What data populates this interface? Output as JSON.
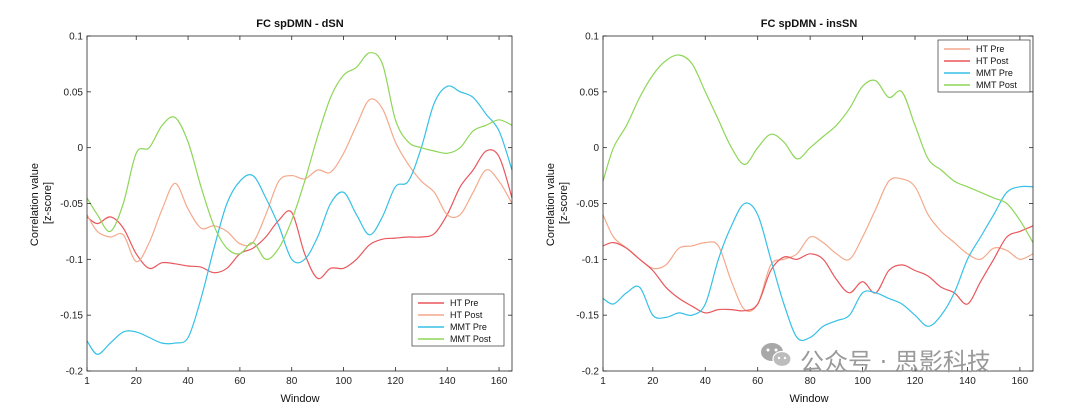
{
  "chart_data": [
    {
      "type": "line",
      "title": "FC spDMN - dSN",
      "xlabel": "Window",
      "ylabel_lines": [
        "Correlation value",
        "[z-score]"
      ],
      "xlim": [
        1,
        165
      ],
      "ylim": [
        -0.2,
        0.1
      ],
      "xticks": [
        1,
        20,
        40,
        60,
        80,
        100,
        120,
        140,
        160
      ],
      "yticks": [
        0.1,
        0.05,
        0,
        -0.05,
        -0.1,
        -0.15,
        -0.2
      ],
      "ytick_labels": [
        "0.1",
        "0.05",
        "0",
        "-0.05",
        "-0.1",
        "-0.15",
        "-0.2"
      ],
      "legend_position": "lower-right",
      "series": [
        {
          "name": "HT Pre",
          "color": "#e8575c",
          "x": [
            1,
            5,
            10,
            15,
            20,
            25,
            30,
            35,
            40,
            45,
            50,
            55,
            60,
            65,
            70,
            75,
            80,
            85,
            90,
            95,
            100,
            105,
            110,
            115,
            120,
            125,
            130,
            135,
            140,
            145,
            150,
            155,
            160,
            165
          ],
          "y": [
            -0.062,
            -0.068,
            -0.062,
            -0.072,
            -0.095,
            -0.108,
            -0.103,
            -0.104,
            -0.106,
            -0.107,
            -0.112,
            -0.108,
            -0.095,
            -0.09,
            -0.08,
            -0.065,
            -0.058,
            -0.095,
            -0.117,
            -0.108,
            -0.108,
            -0.1,
            -0.087,
            -0.082,
            -0.081,
            -0.08,
            -0.08,
            -0.077,
            -0.06,
            -0.035,
            -0.02,
            -0.003,
            -0.008,
            -0.045
          ]
        },
        {
          "name": "HT Post",
          "color": "#f4a98c",
          "x": [
            1,
            5,
            10,
            15,
            20,
            25,
            30,
            35,
            40,
            45,
            50,
            55,
            60,
            65,
            70,
            75,
            80,
            85,
            90,
            95,
            100,
            105,
            110,
            115,
            120,
            125,
            130,
            135,
            140,
            145,
            150,
            155,
            160,
            165
          ],
          "y": [
            -0.06,
            -0.075,
            -0.08,
            -0.078,
            -0.102,
            -0.085,
            -0.055,
            -0.032,
            -0.055,
            -0.072,
            -0.07,
            -0.075,
            -0.086,
            -0.085,
            -0.06,
            -0.03,
            -0.025,
            -0.028,
            -0.02,
            -0.022,
            -0.005,
            0.02,
            0.043,
            0.035,
            0.005,
            -0.015,
            -0.03,
            -0.04,
            -0.06,
            -0.06,
            -0.04,
            -0.02,
            -0.03,
            -0.05
          ]
        },
        {
          "name": "MMT Pre",
          "color": "#36c0e6",
          "x": [
            1,
            5,
            10,
            15,
            20,
            25,
            30,
            35,
            40,
            45,
            50,
            55,
            60,
            65,
            70,
            75,
            80,
            85,
            90,
            95,
            100,
            105,
            110,
            115,
            120,
            125,
            130,
            135,
            140,
            145,
            150,
            155,
            160,
            165
          ],
          "y": [
            -0.173,
            -0.185,
            -0.175,
            -0.165,
            -0.165,
            -0.17,
            -0.175,
            -0.175,
            -0.17,
            -0.135,
            -0.09,
            -0.05,
            -0.03,
            -0.025,
            -0.045,
            -0.07,
            -0.1,
            -0.1,
            -0.08,
            -0.05,
            -0.04,
            -0.06,
            -0.078,
            -0.062,
            -0.035,
            -0.03,
            0.0,
            0.04,
            0.055,
            0.05,
            0.045,
            0.03,
            0.015,
            -0.02
          ]
        },
        {
          "name": "MMT Post",
          "color": "#8ed658",
          "x": [
            1,
            5,
            10,
            15,
            20,
            25,
            30,
            35,
            40,
            45,
            50,
            55,
            60,
            65,
            70,
            75,
            80,
            85,
            90,
            95,
            100,
            105,
            110,
            115,
            120,
            125,
            130,
            135,
            140,
            145,
            150,
            155,
            160,
            165
          ],
          "y": [
            -0.045,
            -0.06,
            -0.075,
            -0.05,
            -0.005,
            0.0,
            0.02,
            0.027,
            0.005,
            -0.035,
            -0.07,
            -0.09,
            -0.095,
            -0.085,
            -0.1,
            -0.09,
            -0.065,
            -0.03,
            0.01,
            0.045,
            0.065,
            0.072,
            0.085,
            0.075,
            0.025,
            0.005,
            0.0,
            -0.003,
            -0.005,
            0.0,
            0.015,
            0.02,
            0.025,
            0.02
          ]
        }
      ]
    },
    {
      "type": "line",
      "title": "FC spDMN - insSN",
      "xlabel": "Window",
      "ylabel_lines": [
        "Correlation value",
        "[z-score]"
      ],
      "xlim": [
        1,
        165
      ],
      "ylim": [
        -0.2,
        0.1
      ],
      "xticks": [
        1,
        20,
        40,
        60,
        80,
        100,
        120,
        140,
        160
      ],
      "yticks": [
        0.1,
        0.05,
        0,
        -0.05,
        -0.1,
        -0.15,
        -0.2
      ],
      "ytick_labels": [
        "0.1",
        "0.05",
        "0",
        "-0.05",
        "-0.1",
        "-0.15",
        "-0.2"
      ],
      "legend_position": "top-right",
      "series": [
        {
          "name": "HT Pre",
          "color": "#f4a98c",
          "x": [
            1,
            5,
            10,
            15,
            20,
            25,
            30,
            35,
            40,
            45,
            50,
            55,
            60,
            65,
            70,
            75,
            80,
            85,
            90,
            95,
            100,
            105,
            110,
            115,
            120,
            125,
            130,
            135,
            140,
            145,
            150,
            155,
            160,
            165
          ],
          "y": [
            -0.06,
            -0.08,
            -0.09,
            -0.1,
            -0.108,
            -0.105,
            -0.09,
            -0.088,
            -0.085,
            -0.088,
            -0.12,
            -0.145,
            -0.14,
            -0.105,
            -0.1,
            -0.095,
            -0.08,
            -0.085,
            -0.095,
            -0.1,
            -0.08,
            -0.055,
            -0.03,
            -0.028,
            -0.035,
            -0.06,
            -0.075,
            -0.085,
            -0.095,
            -0.1,
            -0.09,
            -0.092,
            -0.1,
            -0.095
          ]
        },
        {
          "name": "HT Post",
          "color": "#e8575c",
          "x": [
            1,
            5,
            10,
            15,
            20,
            25,
            30,
            35,
            40,
            45,
            50,
            55,
            60,
            65,
            70,
            75,
            80,
            85,
            90,
            95,
            100,
            105,
            110,
            115,
            120,
            125,
            130,
            135,
            140,
            145,
            150,
            155,
            160,
            165
          ],
          "y": [
            -0.088,
            -0.085,
            -0.09,
            -0.1,
            -0.11,
            -0.125,
            -0.135,
            -0.142,
            -0.148,
            -0.145,
            -0.145,
            -0.146,
            -0.14,
            -0.11,
            -0.098,
            -0.1,
            -0.095,
            -0.1,
            -0.118,
            -0.13,
            -0.12,
            -0.13,
            -0.11,
            -0.105,
            -0.11,
            -0.115,
            -0.125,
            -0.13,
            -0.14,
            -0.12,
            -0.1,
            -0.08,
            -0.075,
            -0.07
          ]
        },
        {
          "name": "MMT Pre",
          "color": "#36c0e6",
          "x": [
            1,
            5,
            10,
            15,
            20,
            25,
            30,
            35,
            40,
            45,
            50,
            55,
            60,
            65,
            70,
            75,
            80,
            85,
            90,
            95,
            100,
            105,
            110,
            115,
            120,
            125,
            130,
            135,
            140,
            145,
            150,
            155,
            160,
            165
          ],
          "y": [
            -0.135,
            -0.14,
            -0.13,
            -0.125,
            -0.15,
            -0.152,
            -0.148,
            -0.15,
            -0.14,
            -0.1,
            -0.07,
            -0.05,
            -0.06,
            -0.1,
            -0.14,
            -0.17,
            -0.17,
            -0.16,
            -0.155,
            -0.15,
            -0.13,
            -0.13,
            -0.135,
            -0.14,
            -0.15,
            -0.16,
            -0.15,
            -0.13,
            -0.1,
            -0.08,
            -0.06,
            -0.04,
            -0.035,
            -0.035
          ]
        },
        {
          "name": "MMT Post",
          "color": "#8ed658",
          "x": [
            1,
            5,
            10,
            15,
            20,
            25,
            30,
            35,
            40,
            45,
            50,
            55,
            60,
            65,
            70,
            75,
            80,
            85,
            90,
            95,
            100,
            105,
            110,
            115,
            120,
            125,
            130,
            135,
            140,
            145,
            150,
            155,
            160,
            165
          ],
          "y": [
            -0.03,
            0.0,
            0.02,
            0.045,
            0.065,
            0.078,
            0.083,
            0.075,
            0.05,
            0.025,
            0.0,
            -0.015,
            0.0,
            0.012,
            0.005,
            -0.01,
            0.0,
            0.01,
            0.02,
            0.035,
            0.055,
            0.06,
            0.045,
            0.05,
            0.02,
            -0.01,
            -0.02,
            -0.03,
            -0.035,
            -0.04,
            -0.045,
            -0.05,
            -0.065,
            -0.085
          ]
        }
      ]
    }
  ],
  "watermark": {
    "text": "公众号 · 思影科技",
    "icon": "wechat-icon"
  }
}
